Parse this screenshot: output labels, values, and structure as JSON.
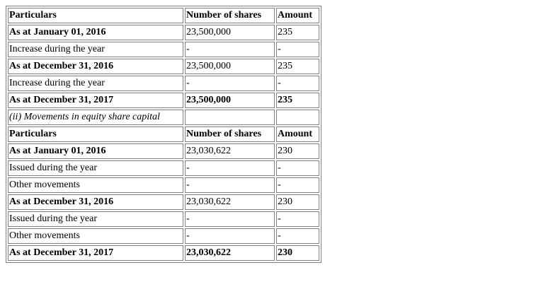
{
  "table": {
    "rows": [
      {
        "cells": [
          "Particulars",
          "Number of shares",
          "Amount"
        ],
        "style": [
          "b",
          "b",
          "b"
        ]
      },
      {
        "cells": [
          "As at January 01, 2016",
          "23,500,000",
          "235"
        ],
        "style": [
          "b",
          "",
          ""
        ]
      },
      {
        "cells": [
          "Increase during the year",
          "-",
          "-"
        ],
        "style": [
          "",
          "",
          ""
        ]
      },
      {
        "cells": [
          "As at December 31, 2016",
          "23,500,000",
          "235"
        ],
        "style": [
          "b",
          "",
          ""
        ]
      },
      {
        "cells": [
          "Increase during the year",
          "-",
          "-"
        ],
        "style": [
          "",
          "",
          ""
        ]
      },
      {
        "cells": [
          "As at December 31, 2017",
          "23,500,000",
          "235"
        ],
        "style": [
          "b",
          "b",
          "b"
        ]
      },
      {
        "cells": [
          "(ii) Movements in equity share capital",
          "",
          ""
        ],
        "style": [
          "i",
          "",
          ""
        ]
      },
      {
        "cells": [
          "Particulars",
          "Number of shares",
          "Amount"
        ],
        "style": [
          "b",
          "b",
          "b"
        ]
      },
      {
        "cells": [
          "As at January 01, 2016",
          "23,030,622",
          "230"
        ],
        "style": [
          "b",
          "",
          ""
        ]
      },
      {
        "cells": [
          "Issued during the year",
          "-",
          "-"
        ],
        "style": [
          "",
          "",
          ""
        ]
      },
      {
        "cells": [
          "Other movements",
          "-",
          "-"
        ],
        "style": [
          "",
          "",
          ""
        ]
      },
      {
        "cells": [
          "As at December 31, 2016",
          "23,030,622",
          "230"
        ],
        "style": [
          "b",
          "",
          ""
        ]
      },
      {
        "cells": [
          "Issued during the year",
          "-",
          "-"
        ],
        "style": [
          "",
          "",
          ""
        ]
      },
      {
        "cells": [
          "Other movements",
          "-",
          "-"
        ],
        "style": [
          "",
          "",
          ""
        ]
      },
      {
        "cells": [
          "As at December 31, 2017",
          "23,030,622",
          "230"
        ],
        "style": [
          "b",
          "b",
          "b"
        ]
      }
    ]
  }
}
